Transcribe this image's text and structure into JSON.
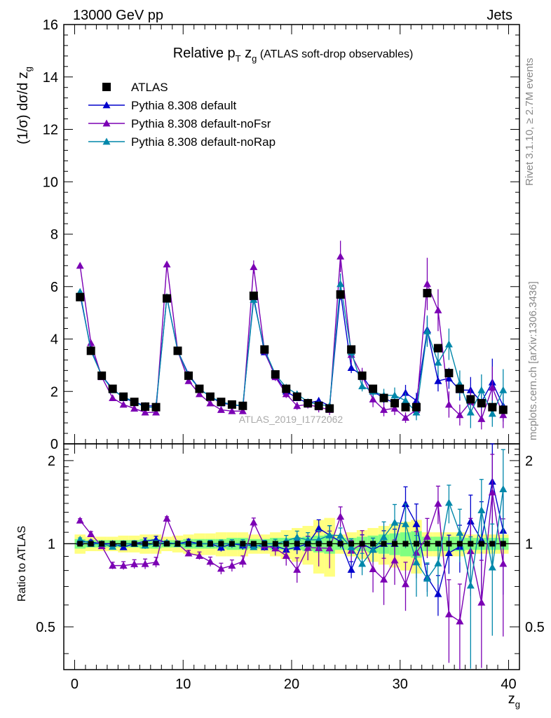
{
  "header": {
    "left": "13000 GeV pp",
    "right": "Jets"
  },
  "side_labels": {
    "rivet": "Rivet 3.1.10, ≥ 2.7M events",
    "mcplots": "mcplots.cern.ch [arXiv:1306.3436]"
  },
  "watermark": "ATLAS_2019_I1772062",
  "chart_data": {
    "type": "scatter",
    "title": "Relative pT zg (ATLAS soft-drop observables)",
    "title_parts": {
      "main": "Relative p",
      "sub_T": "T",
      "mid": " z",
      "sub_g": "g",
      "tail": " (ATLAS soft-drop observables)"
    },
    "ylabel": "(1/σ) dσ/d z",
    "ylabel_sub": "g",
    "xlabel": "z",
    "xlabel_sub": "g",
    "ratio_ylabel": "Ratio to ATLAS",
    "xlim": [
      -1,
      41
    ],
    "ylim": [
      0,
      16
    ],
    "ratio_ylim": [
      0.35,
      2.3
    ],
    "ratio_scale": "log",
    "main_yticks": [
      0,
      2,
      4,
      6,
      8,
      10,
      12,
      14,
      16
    ],
    "xticks": [
      0,
      10,
      20,
      30,
      40
    ],
    "ratio_yticks": [
      0.5,
      1,
      2
    ],
    "legend_position": "top-left",
    "x": [
      0.5,
      1.5,
      2.5,
      3.5,
      4.5,
      5.5,
      6.5,
      7.5,
      8.5,
      9.5,
      10.5,
      11.5,
      12.5,
      13.5,
      14.5,
      15.5,
      16.5,
      17.5,
      18.5,
      19.5,
      20.5,
      21.5,
      22.5,
      23.5,
      24.5,
      25.5,
      26.5,
      27.5,
      28.5,
      29.5,
      30.5,
      31.5,
      32.5,
      33.5,
      34.5,
      35.5,
      36.5,
      37.5,
      38.5,
      39.5
    ],
    "series": [
      {
        "name": "ATLAS",
        "color": "#000000",
        "marker": "square",
        "values": [
          5.6,
          3.55,
          2.6,
          2.1,
          1.8,
          1.6,
          1.42,
          1.4,
          5.55,
          3.55,
          2.6,
          2.1,
          1.8,
          1.6,
          1.5,
          1.45,
          5.65,
          3.6,
          2.65,
          2.1,
          1.8,
          1.55,
          1.45,
          1.35,
          5.7,
          3.6,
          2.6,
          2.1,
          1.75,
          1.55,
          1.4,
          1.4,
          5.75,
          3.65,
          2.7,
          2.1,
          1.7,
          1.55,
          1.4,
          1.3
        ],
        "ratio_band_1sigma": [
          0.04,
          0.03,
          0.03,
          0.03,
          0.03,
          0.03,
          0.04,
          0.04,
          0.03,
          0.03,
          0.04,
          0.04,
          0.04,
          0.04,
          0.05,
          0.05,
          0.04,
          0.04,
          0.05,
          0.05,
          0.05,
          0.06,
          0.07,
          0.08,
          0.05,
          0.05,
          0.06,
          0.07,
          0.08,
          0.09,
          0.1,
          0.11,
          0.06,
          0.06,
          0.06,
          0.06,
          0.05,
          0.05,
          0.05,
          0.05
        ],
        "ratio_band_2sigma": [
          0.08,
          0.06,
          0.06,
          0.06,
          0.07,
          0.07,
          0.08,
          0.08,
          0.06,
          0.07,
          0.08,
          0.09,
          0.09,
          0.1,
          0.1,
          0.1,
          0.08,
          0.08,
          0.1,
          0.12,
          0.14,
          0.16,
          0.22,
          0.24,
          0.08,
          0.1,
          0.12,
          0.14,
          0.16,
          0.18,
          0.2,
          0.22,
          0.1,
          0.1,
          0.1,
          0.1,
          0.08,
          0.08,
          0.08,
          0.08
        ]
      },
      {
        "name": "Pythia 8.308 default",
        "color": "#0000cc",
        "marker": "triangle",
        "values": [
          5.7,
          3.6,
          2.6,
          2.1,
          1.75,
          1.6,
          1.45,
          1.45,
          5.6,
          3.55,
          2.65,
          2.1,
          1.8,
          1.55,
          1.5,
          1.43,
          5.6,
          3.5,
          2.6,
          2.0,
          1.75,
          1.55,
          1.65,
          1.45,
          5.8,
          2.9,
          2.6,
          2.0,
          1.75,
          1.55,
          1.95,
          1.65,
          4.35,
          2.4,
          2.5,
          2.05,
          2.05,
          1.6,
          2.35,
          1.45
        ],
        "values_err": [
          0.08,
          0.06,
          0.05,
          0.04,
          0.04,
          0.04,
          0.04,
          0.04,
          0.08,
          0.06,
          0.05,
          0.05,
          0.05,
          0.05,
          0.05,
          0.05,
          0.1,
          0.1,
          0.1,
          0.1,
          0.1,
          0.1,
          0.12,
          0.12,
          0.3,
          0.2,
          0.2,
          0.2,
          0.2,
          0.2,
          0.3,
          0.3,
          0.5,
          0.4,
          0.4,
          0.4,
          0.5,
          0.6,
          0.9,
          0.6
        ]
      },
      {
        "name": "Pythia 8.308 default-noFsr",
        "color": "#7b00b4",
        "marker": "triangle",
        "values": [
          6.8,
          3.85,
          2.55,
          1.75,
          1.5,
          1.35,
          1.2,
          1.2,
          6.85,
          3.55,
          2.4,
          1.9,
          1.55,
          1.3,
          1.25,
          1.25,
          6.75,
          3.55,
          2.55,
          1.9,
          1.45,
          1.5,
          1.4,
          1.3,
          7.15,
          3.4,
          2.6,
          1.7,
          1.3,
          1.35,
          1.0,
          1.3,
          6.1,
          5.1,
          1.5,
          1.1,
          1.6,
          0.95,
          2.15,
          1.1
        ],
        "values_err": [
          0.1,
          0.08,
          0.06,
          0.05,
          0.05,
          0.05,
          0.05,
          0.05,
          0.1,
          0.08,
          0.06,
          0.06,
          0.06,
          0.06,
          0.06,
          0.06,
          0.25,
          0.15,
          0.15,
          0.15,
          0.15,
          0.15,
          0.2,
          0.2,
          0.6,
          0.3,
          0.3,
          0.3,
          0.25,
          0.25,
          0.2,
          0.25,
          1.0,
          0.8,
          0.5,
          0.4,
          0.5,
          0.4,
          0.8,
          0.5
        ]
      },
      {
        "name": "Pythia 8.308 default-noRap",
        "color": "#0087aa",
        "marker": "triangle",
        "values": [
          5.8,
          3.55,
          2.6,
          2.05,
          1.8,
          1.6,
          1.4,
          1.4,
          5.6,
          3.55,
          2.6,
          2.1,
          1.8,
          1.6,
          1.5,
          1.45,
          5.5,
          3.6,
          2.65,
          2.15,
          1.9,
          1.6,
          1.5,
          1.45,
          6.1,
          3.5,
          2.2,
          2.0,
          1.85,
          1.85,
          1.65,
          1.2,
          4.3,
          3.1,
          3.8,
          2.3,
          1.2,
          2.05,
          1.15,
          2.05
        ],
        "values_err": [
          0.08,
          0.06,
          0.05,
          0.04,
          0.04,
          0.04,
          0.04,
          0.04,
          0.08,
          0.06,
          0.05,
          0.05,
          0.05,
          0.05,
          0.05,
          0.05,
          0.1,
          0.1,
          0.1,
          0.1,
          0.1,
          0.1,
          0.12,
          0.12,
          0.4,
          0.25,
          0.2,
          0.2,
          0.25,
          0.3,
          0.3,
          0.3,
          0.6,
          0.5,
          0.6,
          0.5,
          0.6,
          0.6,
          0.5,
          0.8
        ]
      }
    ]
  }
}
